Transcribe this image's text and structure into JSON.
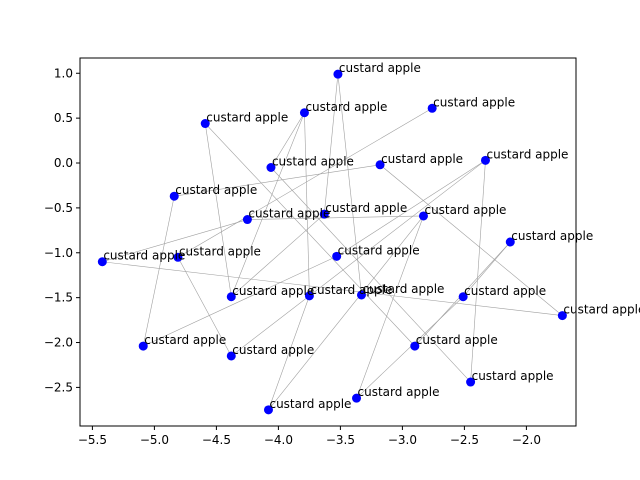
{
  "chart_data": {
    "type": "scatter",
    "title": "",
    "xlabel": "",
    "ylabel": "",
    "xlim": [
      -5.6,
      -1.6
    ],
    "ylim": [
      -2.93,
      1.17
    ],
    "xticks": [
      -5.5,
      -5.0,
      -4.5,
      -4.0,
      -3.5,
      -3.0,
      -2.5,
      -2.0
    ],
    "xtick_labels": [
      "−5.5",
      "−5.0",
      "−4.5",
      "−4.0",
      "−3.5",
      "−3.0",
      "−2.5",
      "−2.0"
    ],
    "yticks": [
      1.0,
      0.5,
      0.0,
      -0.5,
      -1.0,
      -1.5,
      -2.0,
      -2.5
    ],
    "ytick_labels": [
      "1.0",
      "0.5",
      "0.0",
      "−0.5",
      "−1.0",
      "−1.5",
      "−2.0",
      "−2.5"
    ],
    "grid": false,
    "marker_color": "#0000ff",
    "line_color": "#a0a0a0",
    "points": [
      {
        "x": -3.52,
        "y": 0.99,
        "label": "custard apple"
      },
      {
        "x": -2.76,
        "y": 0.61,
        "label": "custard apple"
      },
      {
        "x": -3.79,
        "y": 0.56,
        "label": "custard apple"
      },
      {
        "x": -4.59,
        "y": 0.44,
        "label": "custard apple"
      },
      {
        "x": -2.33,
        "y": 0.03,
        "label": "custard apple"
      },
      {
        "x": -3.18,
        "y": -0.02,
        "label": "custard apple"
      },
      {
        "x": -4.06,
        "y": -0.05,
        "label": "custard apple"
      },
      {
        "x": -4.84,
        "y": -0.37,
        "label": "custard apple"
      },
      {
        "x": -3.63,
        "y": -0.57,
        "label": "custard apple"
      },
      {
        "x": -2.83,
        "y": -0.59,
        "label": "custard apple"
      },
      {
        "x": -4.25,
        "y": -0.63,
        "label": "custard apple"
      },
      {
        "x": -2.13,
        "y": -0.88,
        "label": "custard apple"
      },
      {
        "x": -3.53,
        "y": -1.04,
        "label": "custard apple"
      },
      {
        "x": -4.81,
        "y": -1.05,
        "label": "custard apple"
      },
      {
        "x": -5.42,
        "y": -1.1,
        "label": "custard apple"
      },
      {
        "x": -3.33,
        "y": -1.47,
        "label": "custard apple"
      },
      {
        "x": -3.75,
        "y": -1.48,
        "label": "custard apple"
      },
      {
        "x": -4.38,
        "y": -1.49,
        "label": "custard apple"
      },
      {
        "x": -2.51,
        "y": -1.49,
        "label": "custard apple"
      },
      {
        "x": -1.71,
        "y": -1.7,
        "label": "custard apple"
      },
      {
        "x": -5.09,
        "y": -2.04,
        "label": "custard apple"
      },
      {
        "x": -2.9,
        "y": -2.04,
        "label": "custard apple"
      },
      {
        "x": -4.38,
        "y": -2.15,
        "label": "custard apple"
      },
      {
        "x": -2.45,
        "y": -2.44,
        "label": "custard apple"
      },
      {
        "x": -3.37,
        "y": -2.62,
        "label": "custard apple"
      },
      {
        "x": -4.08,
        "y": -2.75,
        "label": "custard apple"
      }
    ],
    "connections": [
      [
        0,
        15
      ],
      [
        0,
        8
      ],
      [
        8,
        17
      ],
      [
        17,
        2
      ],
      [
        2,
        6
      ],
      [
        6,
        23
      ],
      [
        23,
        4
      ],
      [
        4,
        12
      ],
      [
        12,
        20
      ],
      [
        20,
        7
      ],
      [
        7,
        5
      ],
      [
        5,
        19
      ],
      [
        19,
        14
      ],
      [
        14,
        10
      ],
      [
        10,
        9
      ],
      [
        9,
        24
      ],
      [
        24,
        18
      ],
      [
        18,
        11
      ],
      [
        11,
        21
      ],
      [
        21,
        3
      ],
      [
        3,
        17
      ],
      [
        1,
        13
      ],
      [
        13,
        22
      ],
      [
        22,
        4
      ],
      [
        2,
        16
      ],
      [
        16,
        25
      ],
      [
        25,
        9
      ]
    ]
  }
}
